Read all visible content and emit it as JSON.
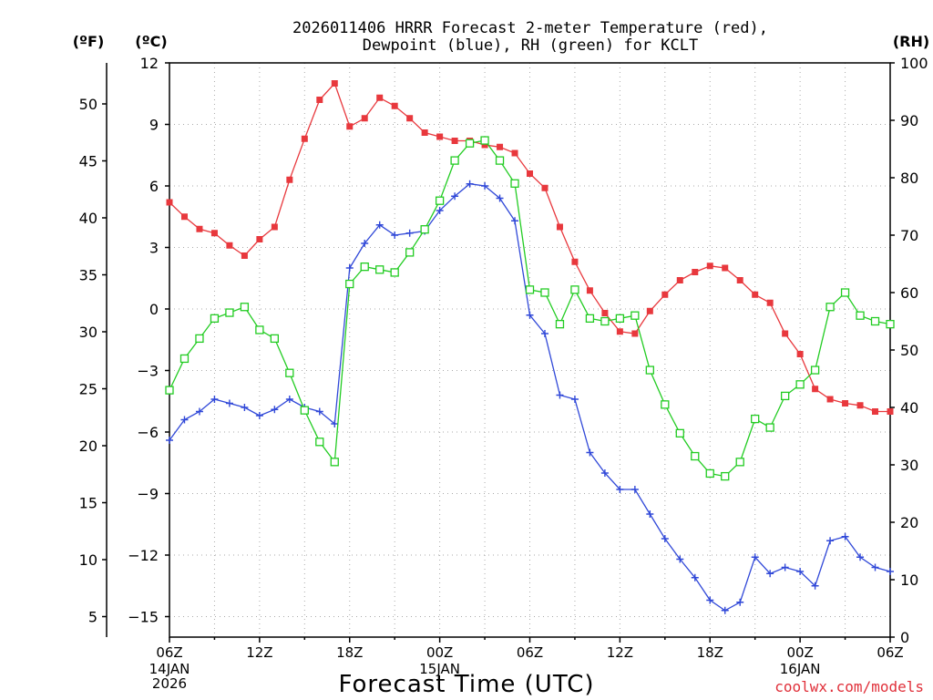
{
  "title_lines": [
    "2026011406 HRRR Forecast 2-meter Temperature (red),",
    "Dewpoint (blue), RH (green) for KCLT"
  ],
  "unit_labels": {
    "fahrenheit": "(ºF)",
    "celsius": "(ºC)",
    "rh": "(RH)"
  },
  "x_axis_label": "Forecast Time (UTC)",
  "credit": "coolwx.com/models",
  "x_ticks": [
    "06Z",
    "12Z",
    "18Z",
    "00Z",
    "06Z",
    "12Z",
    "18Z",
    "00Z",
    "06Z"
  ],
  "date_labels": [
    {
      "tick_index": 0,
      "lines": [
        "14JAN",
        "2026"
      ]
    },
    {
      "tick_index": 3,
      "lines": [
        "15JAN"
      ]
    },
    {
      "tick_index": 7,
      "lines": [
        "16JAN"
      ]
    }
  ],
  "colors": {
    "temperature": "#e8383d",
    "dewpoint": "#3048d8",
    "rh": "#22cc22",
    "grid": "#aaaaaa"
  },
  "chart_data": {
    "type": "line",
    "x_hours_from_start": [
      0,
      1,
      2,
      3,
      4,
      5,
      6,
      7,
      8,
      9,
      10,
      11,
      12,
      13,
      14,
      15,
      16,
      17,
      18,
      19,
      20,
      21,
      22,
      23,
      24,
      25,
      26,
      27,
      28,
      29,
      30,
      31,
      32,
      33,
      34,
      35,
      36,
      37,
      38,
      39,
      40,
      41,
      42,
      43,
      44,
      45,
      46,
      47,
      48
    ],
    "x_range": [
      0,
      48
    ],
    "y_left_celsius": {
      "range": [
        -16,
        12
      ],
      "ticks": [
        12,
        9,
        6,
        3,
        0,
        -3,
        -6,
        -9,
        -12,
        -15
      ]
    },
    "y_left_fahrenheit": {
      "ticks": [
        50,
        45,
        40,
        35,
        30,
        25,
        20,
        15,
        10,
        5
      ]
    },
    "y_right_rh": {
      "range": [
        0,
        100
      ],
      "ticks": [
        100,
        90,
        80,
        70,
        60,
        50,
        40,
        30,
        20,
        10,
        0
      ]
    },
    "grid": true,
    "series": [
      {
        "name": "Temperature",
        "axis": "celsius",
        "marker": "filled-square",
        "values": [
          5.2,
          4.5,
          3.9,
          3.7,
          3.1,
          2.6,
          3.4,
          4.0,
          6.3,
          8.3,
          10.2,
          11.0,
          8.9,
          9.3,
          10.3,
          9.9,
          9.3,
          8.6,
          8.4,
          8.2,
          8.2,
          8.0,
          7.9,
          7.6,
          6.6,
          5.9,
          4.0,
          2.3,
          0.9,
          -0.2,
          -1.1,
          -1.2,
          -0.1,
          0.7,
          1.4,
          1.8,
          2.1,
          2.0,
          1.4,
          0.7,
          0.3,
          -1.2,
          -2.2,
          -3.9,
          -4.4,
          -4.6,
          -4.7,
          -5.0,
          -5.0
        ]
      },
      {
        "name": "Dewpoint",
        "axis": "celsius",
        "marker": "plus",
        "values": [
          -6.4,
          -5.4,
          -5.0,
          -4.4,
          -4.6,
          -4.8,
          -5.2,
          -4.9,
          -4.4,
          -4.8,
          -5.0,
          -5.6,
          2.0,
          3.2,
          4.1,
          3.6,
          3.7,
          3.8,
          4.8,
          5.5,
          6.1,
          6.0,
          5.4,
          4.3,
          -0.3,
          -1.2,
          -4.2,
          -4.4,
          -7.0,
          -8.0,
          -8.8,
          -8.8,
          -10.0,
          -11.2,
          -12.2,
          -13.1,
          -14.2,
          -14.7,
          -14.3,
          -12.1,
          -12.9,
          -12.6,
          -12.8,
          -13.5,
          -11.3,
          -11.1,
          -12.1,
          -12.6,
          -12.8
        ]
      },
      {
        "name": "RH",
        "axis": "rh",
        "marker": "open-square",
        "values": [
          43,
          48.5,
          52,
          55.5,
          56.5,
          57.5,
          53.5,
          52,
          46,
          39.5,
          34,
          30.5,
          61.5,
          64.5,
          64,
          63.5,
          67,
          71,
          76,
          83,
          86,
          86.5,
          83,
          79,
          60.5,
          60,
          54.5,
          60.5,
          55.5,
          55,
          55.5,
          56,
          46.5,
          40.5,
          35.5,
          31.5,
          28.5,
          28,
          30.5,
          38,
          36.5,
          42,
          44,
          46.5,
          57.5,
          60,
          56,
          55,
          54.5
        ]
      }
    ]
  }
}
